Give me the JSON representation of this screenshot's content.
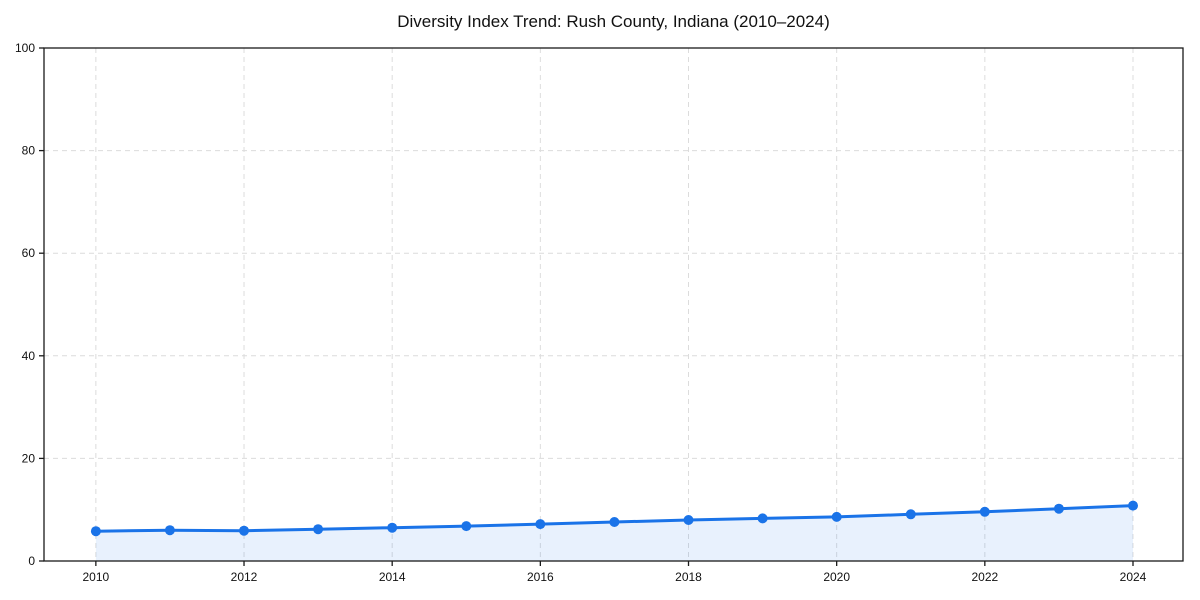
{
  "chart_data": {
    "type": "line",
    "title": "Diversity Index Trend: Rush County, Indiana (2010–2024)",
    "xlabel": "",
    "ylabel": "",
    "x": [
      2010,
      2011,
      2012,
      2013,
      2014,
      2015,
      2016,
      2017,
      2018,
      2019,
      2020,
      2021,
      2022,
      2023,
      2024
    ],
    "series": [
      {
        "name": "Diversity Index",
        "values": [
          5.8,
          6.0,
          5.9,
          6.2,
          6.5,
          6.8,
          7.2,
          7.6,
          8.0,
          8.3,
          8.6,
          9.1,
          9.6,
          10.2,
          10.8
        ]
      }
    ],
    "xlim": [
      2009.3,
      2024.675
    ],
    "ylim": [
      0,
      100
    ],
    "xticks": [
      2010,
      2012,
      2014,
      2016,
      2018,
      2020,
      2022,
      2024
    ],
    "yticks": [
      0,
      20,
      40,
      60,
      80,
      100
    ],
    "grid": true,
    "grid_style": "dashed",
    "legend": false,
    "marker": "circle",
    "area_fill": true,
    "colors": {
      "line": "#1a73e8",
      "marker": "#1a73e8",
      "fill": "#1a73e8",
      "fill_opacity": 0.1,
      "grid": "#dcdcdc",
      "axis": "#1a1a1a",
      "text": "#111111",
      "background": "#ffffff"
    }
  }
}
